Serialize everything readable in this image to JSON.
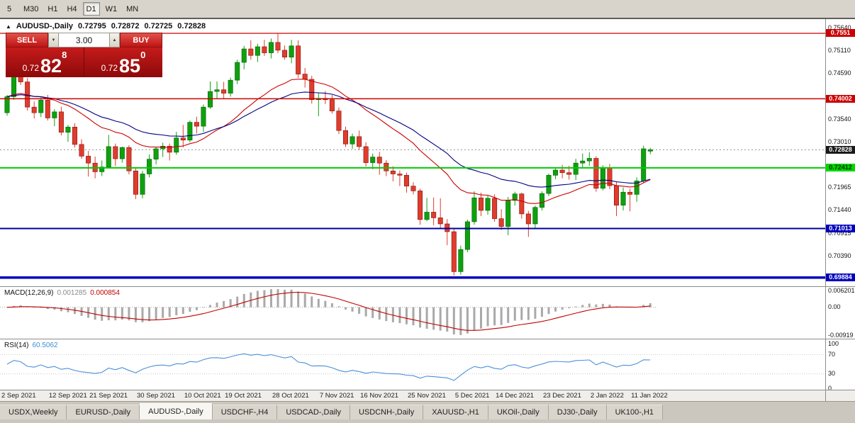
{
  "window": {
    "timeframes": [
      {
        "label": "5",
        "active": false
      },
      {
        "label": "M30",
        "active": false
      },
      {
        "label": "H1",
        "active": false
      },
      {
        "label": "H4",
        "active": false
      },
      {
        "label": "D1",
        "active": true
      },
      {
        "label": "W1",
        "active": false
      },
      {
        "label": "MN",
        "active": false
      }
    ]
  },
  "chart_title": {
    "icon": "▲",
    "symbol": "AUDUSD-,Daily",
    "open": "0.72795",
    "high": "0.72872",
    "low": "0.72725",
    "close": "0.72828"
  },
  "one_click": {
    "sell_label": "SELL",
    "buy_label": "BUY",
    "volume": "3.00",
    "volume_down_icon": "▼",
    "volume_up_icon": "▲",
    "sell": {
      "small": "0.72",
      "big": "82",
      "sup": "8"
    },
    "buy": {
      "small": "0.72",
      "big": "85",
      "sup": "0"
    }
  },
  "price_axis": {
    "ticks": [
      "0.75640",
      "0.75110",
      "0.74590",
      "0.73540",
      "0.73010",
      "0.71965",
      "0.71440",
      "0.70915",
      "0.70390"
    ],
    "badges": [
      {
        "text": "0.7551",
        "price": 0.7551,
        "bg": "#cc0000",
        "fg": "#ffffff"
      },
      {
        "text": "0.74002",
        "price": 0.74002,
        "bg": "#cc0000",
        "fg": "#ffffff"
      },
      {
        "text": "0.72828",
        "price": 0.72828,
        "bg": "#1a1a1a",
        "fg": "#ffffff"
      },
      {
        "text": "0.72412",
        "price": 0.72412,
        "bg": "#00d800",
        "fg": "#002b00"
      },
      {
        "text": "0.71013",
        "price": 0.71013,
        "bg": "#0000bb",
        "fg": "#ffffff"
      },
      {
        "text": "0.69884",
        "price": 0.69884,
        "bg": "#0000bb",
        "fg": "#ffffff"
      }
    ]
  },
  "indicators": {
    "macd": {
      "name": "MACD(12,26,9)",
      "value_main": "0.001285",
      "value_signal": "0.000854",
      "axis_labels": [
        "0.006201",
        "0.00",
        "-0.00919"
      ],
      "params": [
        12,
        26,
        9
      ]
    },
    "rsi": {
      "name": "RSI(14)",
      "value": "60.5062",
      "period": 14,
      "axis_labels": [
        {
          "text": "100",
          "value": 100
        },
        {
          "text": "70",
          "value": 70
        },
        {
          "text": "30",
          "value": 30
        },
        {
          "text": "0",
          "value": 0
        }
      ],
      "levels": [
        70,
        30
      ]
    }
  },
  "chart_data": {
    "type": "candlestick",
    "symbol": "AUDUSD-",
    "timeframe": "Daily",
    "price_range": [
      0.697,
      0.75787
    ],
    "style": {
      "bull": "#0ea10e",
      "bear": "#e03c2d",
      "bull_edge": "#075e07",
      "bear_edge": "#7c150d",
      "ma_fast": "#cc0000",
      "ma_slow": "#000080",
      "macd_hist": "#a9a9a9",
      "macd_signal": "#c00000",
      "rsi_line": "#4a90d9"
    },
    "moving_averages": [
      {
        "period": 20,
        "color": "#cc0000"
      },
      {
        "period": 34,
        "color": "#000080"
      }
    ],
    "hlines": [
      {
        "price": 0.72828,
        "color": "#909090",
        "width": 1,
        "dash": "2,3"
      },
      {
        "price": 0.7551,
        "color": "#cc0000",
        "width": 1.2
      },
      {
        "price": 0.74002,
        "color": "#cc0000",
        "width": 1.4
      },
      {
        "price": 0.72412,
        "color": "#00cc00",
        "width": 2
      },
      {
        "price": 0.71013,
        "color": "#000099",
        "width": 2
      },
      {
        "price": 0.69884,
        "color": "#0000bb",
        "width": 3.5
      }
    ],
    "date_labels": [
      {
        "text": "2 Sep 2021",
        "i": 0
      },
      {
        "text": "12 Sep 2021",
        "i": 7
      },
      {
        "text": "21 Sep 2021",
        "i": 13
      },
      {
        "text": "30 Sep 2021",
        "i": 20
      },
      {
        "text": "10 Oct 2021",
        "i": 27
      },
      {
        "text": "19 Oct 2021",
        "i": 33
      },
      {
        "text": "28 Oct 2021",
        "i": 40
      },
      {
        "text": "7 Nov 2021",
        "i": 47
      },
      {
        "text": "16 Nov 2021",
        "i": 53
      },
      {
        "text": "25 Nov 2021",
        "i": 60
      },
      {
        "text": "5 Dec 2021",
        "i": 67
      },
      {
        "text": "14 Dec 2021",
        "i": 73
      },
      {
        "text": "23 Dec 2021",
        "i": 80
      },
      {
        "text": "2 Jan 2022",
        "i": 87
      },
      {
        "text": "11 Jan 2022",
        "i": 93
      }
    ],
    "candles": [
      [
        0.7368,
        0.7409,
        0.7361,
        0.7405
      ],
      [
        0.7405,
        0.7462,
        0.7398,
        0.7453
      ],
      [
        0.7453,
        0.7462,
        0.7432,
        0.7439
      ],
      [
        0.7439,
        0.7448,
        0.7373,
        0.7381
      ],
      [
        0.7381,
        0.7394,
        0.7355,
        0.7368
      ],
      [
        0.7368,
        0.7403,
        0.7358,
        0.7397
      ],
      [
        0.7397,
        0.7409,
        0.735,
        0.7356
      ],
      [
        0.7356,
        0.7376,
        0.7337,
        0.737
      ],
      [
        0.737,
        0.7382,
        0.7316,
        0.7323
      ],
      [
        0.7323,
        0.734,
        0.7301,
        0.7335
      ],
      [
        0.7335,
        0.7344,
        0.7288,
        0.7295
      ],
      [
        0.7295,
        0.7307,
        0.7262,
        0.7268
      ],
      [
        0.7268,
        0.728,
        0.7221,
        0.7252
      ],
      [
        0.7252,
        0.7267,
        0.7217,
        0.7232
      ],
      [
        0.7232,
        0.7258,
        0.7222,
        0.7243
      ],
      [
        0.7243,
        0.7317,
        0.724,
        0.729
      ],
      [
        0.729,
        0.7297,
        0.7245,
        0.7262
      ],
      [
        0.7262,
        0.729,
        0.7253,
        0.7288
      ],
      [
        0.7288,
        0.7293,
        0.7226,
        0.7234
      ],
      [
        0.7234,
        0.7241,
        0.7169,
        0.718
      ],
      [
        0.718,
        0.7234,
        0.7171,
        0.7227
      ],
      [
        0.7227,
        0.7272,
        0.7219,
        0.7261
      ],
      [
        0.7261,
        0.729,
        0.7249,
        0.7285
      ],
      [
        0.7285,
        0.7299,
        0.7266,
        0.7291
      ],
      [
        0.7291,
        0.7297,
        0.7258,
        0.7277
      ],
      [
        0.7277,
        0.7324,
        0.7271,
        0.731
      ],
      [
        0.731,
        0.734,
        0.7288,
        0.7305
      ],
      [
        0.7305,
        0.735,
        0.73,
        0.7346
      ],
      [
        0.7346,
        0.7359,
        0.732,
        0.7337
      ],
      [
        0.7337,
        0.7387,
        0.7324,
        0.7381
      ],
      [
        0.7381,
        0.744,
        0.7377,
        0.7417
      ],
      [
        0.7417,
        0.744,
        0.74,
        0.7421
      ],
      [
        0.7421,
        0.7439,
        0.7401,
        0.7413
      ],
      [
        0.7413,
        0.7449,
        0.7405,
        0.7443
      ],
      [
        0.7443,
        0.749,
        0.7434,
        0.7484
      ],
      [
        0.7484,
        0.7522,
        0.7468,
        0.7515
      ],
      [
        0.7515,
        0.7535,
        0.749,
        0.75
      ],
      [
        0.75,
        0.7527,
        0.7485,
        0.752
      ],
      [
        0.752,
        0.7536,
        0.7499,
        0.7506
      ],
      [
        0.7506,
        0.7539,
        0.7493,
        0.753
      ],
      [
        0.753,
        0.7551,
        0.7505,
        0.7512
      ],
      [
        0.7512,
        0.7523,
        0.749,
        0.7496
      ],
      [
        0.7496,
        0.7536,
        0.7482,
        0.7522
      ],
      [
        0.7522,
        0.7535,
        0.7448,
        0.7457
      ],
      [
        0.7457,
        0.7471,
        0.7426,
        0.7445
      ],
      [
        0.7445,
        0.7453,
        0.7389,
        0.7398
      ],
      [
        0.7398,
        0.7414,
        0.736,
        0.7401
      ],
      [
        0.7401,
        0.7418,
        0.7388,
        0.7398
      ],
      [
        0.7398,
        0.7409,
        0.7366,
        0.7372
      ],
      [
        0.7372,
        0.738,
        0.7319,
        0.7327
      ],
      [
        0.7327,
        0.7336,
        0.7289,
        0.7296
      ],
      [
        0.7296,
        0.732,
        0.7285,
        0.7313
      ],
      [
        0.7313,
        0.7327,
        0.7283,
        0.729
      ],
      [
        0.729,
        0.73,
        0.7244,
        0.7253
      ],
      [
        0.7253,
        0.7274,
        0.7238,
        0.7266
      ],
      [
        0.7266,
        0.7278,
        0.7225,
        0.7252
      ],
      [
        0.7252,
        0.7259,
        0.7222,
        0.7234
      ],
      [
        0.7234,
        0.7245,
        0.721,
        0.7227
      ],
      [
        0.7227,
        0.7235,
        0.7199,
        0.7224
      ],
      [
        0.7224,
        0.723,
        0.7184,
        0.7199
      ],
      [
        0.7199,
        0.7208,
        0.718,
        0.7188
      ],
      [
        0.7188,
        0.7193,
        0.711,
        0.7122
      ],
      [
        0.7122,
        0.7172,
        0.7118,
        0.7139
      ],
      [
        0.7139,
        0.7173,
        0.7109,
        0.7126
      ],
      [
        0.7126,
        0.7171,
        0.71,
        0.7112
      ],
      [
        0.7112,
        0.7123,
        0.7063,
        0.7094
      ],
      [
        0.7094,
        0.7103,
        0.6993,
        0.7002
      ],
      [
        0.7002,
        0.7062,
        0.6995,
        0.7053
      ],
      [
        0.7053,
        0.7122,
        0.7047,
        0.7117
      ],
      [
        0.7117,
        0.7187,
        0.711,
        0.7172
      ],
      [
        0.7172,
        0.7184,
        0.713,
        0.7143
      ],
      [
        0.7143,
        0.7178,
        0.7133,
        0.7171
      ],
      [
        0.7171,
        0.718,
        0.7117,
        0.7124
      ],
      [
        0.7124,
        0.7146,
        0.7098,
        0.7106
      ],
      [
        0.7106,
        0.7174,
        0.7086,
        0.7166
      ],
      [
        0.7166,
        0.7186,
        0.7154,
        0.7181
      ],
      [
        0.7181,
        0.7184,
        0.7124,
        0.7135
      ],
      [
        0.7135,
        0.7142,
        0.7082,
        0.7112
      ],
      [
        0.7112,
        0.7154,
        0.7102,
        0.715
      ],
      [
        0.715,
        0.7187,
        0.7143,
        0.7182
      ],
      [
        0.7182,
        0.7228,
        0.7176,
        0.7224
      ],
      [
        0.7224,
        0.7242,
        0.7215,
        0.7236
      ],
      [
        0.7236,
        0.7248,
        0.7217,
        0.723
      ],
      [
        0.723,
        0.7246,
        0.7214,
        0.7226
      ],
      [
        0.7226,
        0.7262,
        0.7213,
        0.7252
      ],
      [
        0.7252,
        0.7274,
        0.724,
        0.7257
      ],
      [
        0.7257,
        0.7277,
        0.7246,
        0.7263
      ],
      [
        0.7263,
        0.7268,
        0.7186,
        0.7194
      ],
      [
        0.7194,
        0.7247,
        0.7189,
        0.7241
      ],
      [
        0.7241,
        0.725,
        0.7192,
        0.72
      ],
      [
        0.72,
        0.7208,
        0.713,
        0.7155
      ],
      [
        0.7155,
        0.7196,
        0.7143,
        0.7185
      ],
      [
        0.7185,
        0.7193,
        0.7141,
        0.718
      ],
      [
        0.718,
        0.7219,
        0.7163,
        0.7211
      ],
      [
        0.7211,
        0.7292,
        0.7206,
        0.7285
      ],
      [
        0.72795,
        0.72872,
        0.72725,
        0.72828
      ]
    ]
  },
  "tabs": [
    {
      "label": "USDX,Weekly",
      "active": false
    },
    {
      "label": "EURUSD-,Daily",
      "active": false
    },
    {
      "label": "AUDUSD-,Daily",
      "active": true
    },
    {
      "label": "USDCHF-,H4",
      "active": false
    },
    {
      "label": "USDCAD-,Daily",
      "active": false
    },
    {
      "label": "USDCNH-,Daily",
      "active": false
    },
    {
      "label": "XAUUSD-,H1",
      "active": false
    },
    {
      "label": "UKOil-,Daily",
      "active": false
    },
    {
      "label": "DJ30-,Daily",
      "active": false
    },
    {
      "label": "UK100-,H1",
      "active": false
    }
  ]
}
